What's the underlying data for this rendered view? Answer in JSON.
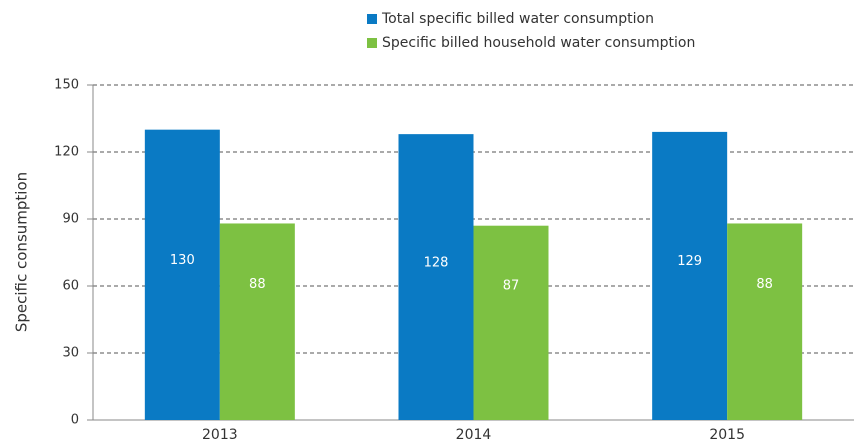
{
  "chart_data": {
    "type": "bar",
    "y_label": "Specific consumption",
    "categories": [
      "2013",
      "2014",
      "2015"
    ],
    "series": [
      {
        "name": "Total specific billed water consumption",
        "color": "#0a7ac4",
        "values": [
          130,
          128,
          129
        ]
      },
      {
        "name": "Specific billed household water consumption",
        "color": "#7dc142",
        "values": [
          88,
          87,
          88
        ]
      }
    ],
    "ylim": [
      0,
      150
    ],
    "yticks": [
      0,
      30,
      60,
      90,
      120,
      150
    ],
    "grid": true
  }
}
